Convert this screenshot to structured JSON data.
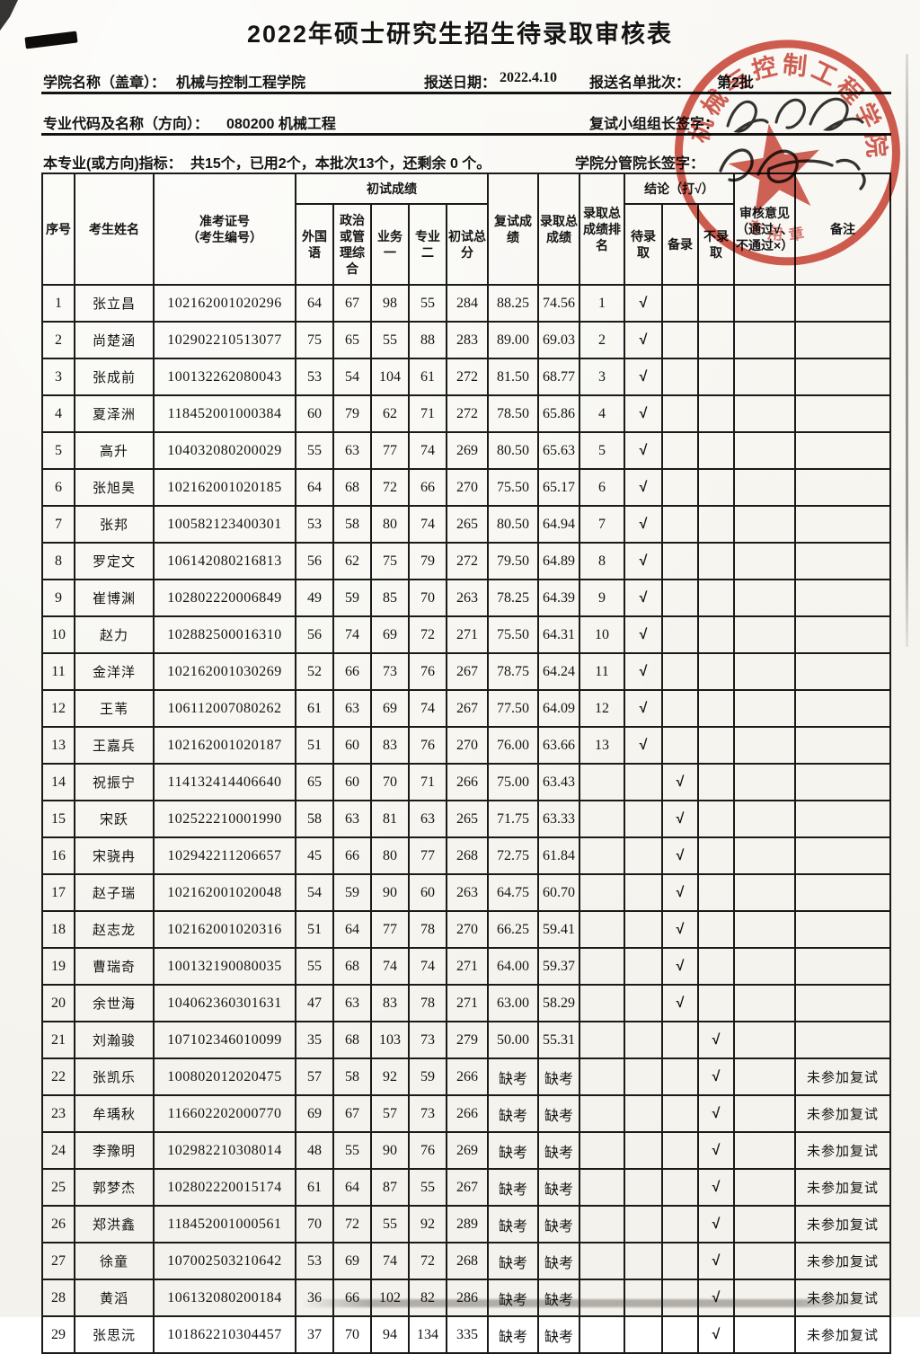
{
  "title": "2022年硕士研究生招生待录取审核表",
  "meta": {
    "college_label": "学院名称（盖章）：",
    "college_value": "机械与控制工程学院",
    "date_label": "报送日期：",
    "date_value": "2022.4.10",
    "batch_label": "报送名单批次：",
    "batch_value": "第2批",
    "major_label": "专业代码及名称（方向）：",
    "major_value": "080200 机械工程",
    "retest_leader_label": "复试小组组长签字：",
    "quota_label": "本专业(或方向)指标：",
    "quota_value": "共15个，已用2个，本批次13个，还剩余 0 个。",
    "dean_label": "学院分管院长签字："
  },
  "stamp": {
    "ring_text": "机械与控制工程学院",
    "bottom_text": "专用章",
    "color": "#c8392b"
  },
  "table": {
    "check_glyph": "√",
    "columns": {
      "index": "序号",
      "name": "考生姓名",
      "ticket_line1": "准考证号",
      "ticket_line2": "（考生编号）",
      "first_exam": "初试成绩",
      "foreign": "外国语",
      "politics": "政治或管理综合",
      "business1": "业务一",
      "major2": "专业二",
      "first_total": "初试总分",
      "retest": "复试成绩",
      "total": "录取总成绩",
      "rank": "录取总成绩排名",
      "conclusion": "结论（打√）",
      "pending": "待录取",
      "backup": "备录",
      "reject": "不录取",
      "review": "审核意见（通过√、不通过×）",
      "remark": "备注"
    },
    "rows": [
      {
        "no": "1",
        "name": "张立昌",
        "ticket": "102162001020296",
        "foreign": "64",
        "politics": "67",
        "business1": "98",
        "major2": "55",
        "first_total": "284",
        "retest": "88.25",
        "total": "74.56",
        "rank": "1",
        "conclusion": "待录取",
        "remark": ""
      },
      {
        "no": "2",
        "name": "尚楚涵",
        "ticket": "102902210513077",
        "foreign": "75",
        "politics": "65",
        "business1": "55",
        "major2": "88",
        "first_total": "283",
        "retest": "89.00",
        "total": "69.03",
        "rank": "2",
        "conclusion": "待录取",
        "remark": ""
      },
      {
        "no": "3",
        "name": "张成前",
        "ticket": "100132262080043",
        "foreign": "53",
        "politics": "54",
        "business1": "104",
        "major2": "61",
        "first_total": "272",
        "retest": "81.50",
        "total": "68.77",
        "rank": "3",
        "conclusion": "待录取",
        "remark": ""
      },
      {
        "no": "4",
        "name": "夏泽洲",
        "ticket": "118452001000384",
        "foreign": "60",
        "politics": "79",
        "business1": "62",
        "major2": "71",
        "first_total": "272",
        "retest": "78.50",
        "total": "65.86",
        "rank": "4",
        "conclusion": "待录取",
        "remark": ""
      },
      {
        "no": "5",
        "name": "高升",
        "ticket": "104032080200029",
        "foreign": "55",
        "politics": "63",
        "business1": "77",
        "major2": "74",
        "first_total": "269",
        "retest": "80.50",
        "total": "65.63",
        "rank": "5",
        "conclusion": "待录取",
        "remark": ""
      },
      {
        "no": "6",
        "name": "张旭昊",
        "ticket": "102162001020185",
        "foreign": "64",
        "politics": "68",
        "business1": "72",
        "major2": "66",
        "first_total": "270",
        "retest": "75.50",
        "total": "65.17",
        "rank": "6",
        "conclusion": "待录取",
        "remark": ""
      },
      {
        "no": "7",
        "name": "张邦",
        "ticket": "100582123400301",
        "foreign": "53",
        "politics": "58",
        "business1": "80",
        "major2": "74",
        "first_total": "265",
        "retest": "80.50",
        "total": "64.94",
        "rank": "7",
        "conclusion": "待录取",
        "remark": ""
      },
      {
        "no": "8",
        "name": "罗定文",
        "ticket": "106142080216813",
        "foreign": "56",
        "politics": "62",
        "business1": "75",
        "major2": "79",
        "first_total": "272",
        "retest": "79.50",
        "total": "64.89",
        "rank": "8",
        "conclusion": "待录取",
        "remark": ""
      },
      {
        "no": "9",
        "name": "崔博渊",
        "ticket": "102802220006849",
        "foreign": "49",
        "politics": "59",
        "business1": "85",
        "major2": "70",
        "first_total": "263",
        "retest": "78.25",
        "total": "64.39",
        "rank": "9",
        "conclusion": "待录取",
        "remark": ""
      },
      {
        "no": "10",
        "name": "赵力",
        "ticket": "102882500016310",
        "foreign": "56",
        "politics": "74",
        "business1": "69",
        "major2": "72",
        "first_total": "271",
        "retest": "75.50",
        "total": "64.31",
        "rank": "10",
        "conclusion": "待录取",
        "remark": ""
      },
      {
        "no": "11",
        "name": "金洋洋",
        "ticket": "102162001030269",
        "foreign": "52",
        "politics": "66",
        "business1": "73",
        "major2": "76",
        "first_total": "267",
        "retest": "78.75",
        "total": "64.24",
        "rank": "11",
        "conclusion": "待录取",
        "remark": ""
      },
      {
        "no": "12",
        "name": "王苇",
        "ticket": "106112007080262",
        "foreign": "61",
        "politics": "63",
        "business1": "69",
        "major2": "74",
        "first_total": "267",
        "retest": "77.50",
        "total": "64.09",
        "rank": "12",
        "conclusion": "待录取",
        "remark": ""
      },
      {
        "no": "13",
        "name": "王嘉兵",
        "ticket": "102162001020187",
        "foreign": "51",
        "politics": "60",
        "business1": "83",
        "major2": "76",
        "first_total": "270",
        "retest": "76.00",
        "total": "63.66",
        "rank": "13",
        "conclusion": "待录取",
        "remark": ""
      },
      {
        "no": "14",
        "name": "祝振宁",
        "ticket": "114132414406640",
        "foreign": "65",
        "politics": "60",
        "business1": "70",
        "major2": "71",
        "first_total": "266",
        "retest": "75.00",
        "total": "63.43",
        "rank": "",
        "conclusion": "备录",
        "remark": ""
      },
      {
        "no": "15",
        "name": "宋跃",
        "ticket": "102522210001990",
        "foreign": "58",
        "politics": "63",
        "business1": "81",
        "major2": "63",
        "first_total": "265",
        "retest": "71.75",
        "total": "63.33",
        "rank": "",
        "conclusion": "备录",
        "remark": ""
      },
      {
        "no": "16",
        "name": "宋骁冉",
        "ticket": "102942211206657",
        "foreign": "45",
        "politics": "66",
        "business1": "80",
        "major2": "77",
        "first_total": "268",
        "retest": "72.75",
        "total": "61.84",
        "rank": "",
        "conclusion": "备录",
        "remark": ""
      },
      {
        "no": "17",
        "name": "赵子瑞",
        "ticket": "102162001020048",
        "foreign": "54",
        "politics": "59",
        "business1": "90",
        "major2": "60",
        "first_total": "263",
        "retest": "64.75",
        "total": "60.70",
        "rank": "",
        "conclusion": "备录",
        "remark": ""
      },
      {
        "no": "18",
        "name": "赵志龙",
        "ticket": "102162001020316",
        "foreign": "51",
        "politics": "64",
        "business1": "77",
        "major2": "78",
        "first_total": "270",
        "retest": "66.25",
        "total": "59.41",
        "rank": "",
        "conclusion": "备录",
        "remark": ""
      },
      {
        "no": "19",
        "name": "曹瑞奇",
        "ticket": "100132190080035",
        "foreign": "55",
        "politics": "68",
        "business1": "74",
        "major2": "74",
        "first_total": "271",
        "retest": "64.00",
        "total": "59.37",
        "rank": "",
        "conclusion": "备录",
        "remark": ""
      },
      {
        "no": "20",
        "name": "余世海",
        "ticket": "104062360301631",
        "foreign": "47",
        "politics": "63",
        "business1": "83",
        "major2": "78",
        "first_total": "271",
        "retest": "63.00",
        "total": "58.29",
        "rank": "",
        "conclusion": "备录",
        "remark": ""
      },
      {
        "no": "21",
        "name": "刘瀚骏",
        "ticket": "107102346010099",
        "foreign": "35",
        "politics": "68",
        "business1": "103",
        "major2": "73",
        "first_total": "279",
        "retest": "50.00",
        "total": "55.31",
        "rank": "",
        "conclusion": "不录取",
        "remark": ""
      },
      {
        "no": "22",
        "name": "张凯乐",
        "ticket": "100802012020475",
        "foreign": "57",
        "politics": "58",
        "business1": "92",
        "major2": "59",
        "first_total": "266",
        "retest": "缺考",
        "total": "缺考",
        "rank": "",
        "conclusion": "不录取",
        "remark": "未参加复试"
      },
      {
        "no": "23",
        "name": "牟瑀秋",
        "ticket": "116602202000770",
        "foreign": "69",
        "politics": "67",
        "business1": "57",
        "major2": "73",
        "first_total": "266",
        "retest": "缺考",
        "total": "缺考",
        "rank": "",
        "conclusion": "不录取",
        "remark": "未参加复试"
      },
      {
        "no": "24",
        "name": "李豫明",
        "ticket": "102982210308014",
        "foreign": "48",
        "politics": "55",
        "business1": "90",
        "major2": "76",
        "first_total": "269",
        "retest": "缺考",
        "total": "缺考",
        "rank": "",
        "conclusion": "不录取",
        "remark": "未参加复试"
      },
      {
        "no": "25",
        "name": "郭梦杰",
        "ticket": "102802220015174",
        "foreign": "61",
        "politics": "64",
        "business1": "87",
        "major2": "55",
        "first_total": "267",
        "retest": "缺考",
        "total": "缺考",
        "rank": "",
        "conclusion": "不录取",
        "remark": "未参加复试"
      },
      {
        "no": "26",
        "name": "郑洪鑫",
        "ticket": "118452001000561",
        "foreign": "70",
        "politics": "72",
        "business1": "55",
        "major2": "92",
        "first_total": "289",
        "retest": "缺考",
        "total": "缺考",
        "rank": "",
        "conclusion": "不录取",
        "remark": "未参加复试"
      },
      {
        "no": "27",
        "name": "徐童",
        "ticket": "107002503210642",
        "foreign": "53",
        "politics": "69",
        "business1": "74",
        "major2": "72",
        "first_total": "268",
        "retest": "缺考",
        "total": "缺考",
        "rank": "",
        "conclusion": "不录取",
        "remark": "未参加复试"
      },
      {
        "no": "28",
        "name": "黄滔",
        "ticket": "106132080200184",
        "foreign": "36",
        "politics": "66",
        "business1": "102",
        "major2": "82",
        "first_total": "286",
        "retest": "缺考",
        "total": "缺考",
        "rank": "",
        "conclusion": "不录取",
        "remark": "未参加复试"
      },
      {
        "no": "29",
        "name": "张思沅",
        "ticket": "101862210304457",
        "foreign": "37",
        "politics": "70",
        "business1": "94",
        "major2": "134",
        "first_total": "335",
        "retest": "缺考",
        "total": "缺考",
        "rank": "",
        "conclusion": "不录取",
        "remark": "未参加复试"
      }
    ]
  }
}
